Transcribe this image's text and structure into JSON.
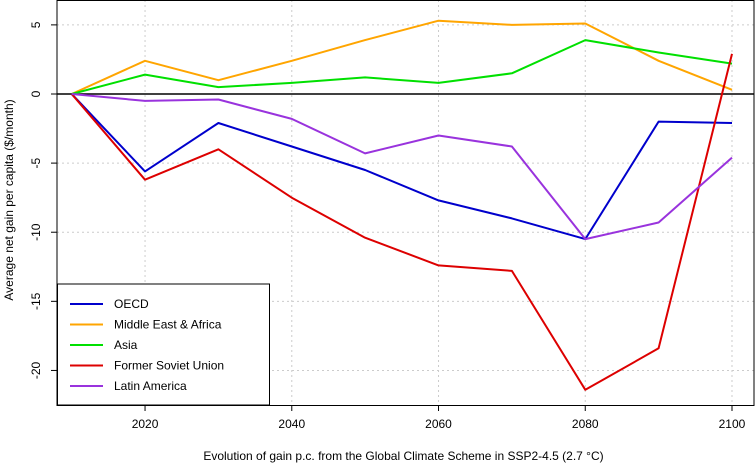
{
  "chart_data": {
    "type": "line",
    "title": "",
    "xlabel": "Evolution of  gain  p.c. from the Global Climate Scheme in SSP2-4.5 (2.7 °C)",
    "ylabel": "Average net gain per capita ($/month)",
    "xlim": [
      2008,
      2103
    ],
    "ylim": [
      -22.5,
      6.8
    ],
    "xticks": [
      2020,
      2040,
      2060,
      2080,
      2100
    ],
    "yticks": [
      5,
      0,
      -5,
      -10,
      -15,
      -20
    ],
    "grid": true,
    "zero_line": true,
    "legend_position": "bottom-left",
    "x": [
      2010,
      2020,
      2030,
      2040,
      2050,
      2060,
      2070,
      2080,
      2090,
      2100
    ],
    "series": [
      {
        "name": "OECD",
        "color": "#0000cc",
        "values": [
          0,
          -5.6,
          -2.1,
          -3.8,
          -5.5,
          -7.7,
          -9.0,
          -10.5,
          -2.0,
          -2.1
        ]
      },
      {
        "name": "Middle East & Africa",
        "color": "#ffa500",
        "values": [
          0,
          2.4,
          1.0,
          2.4,
          3.9,
          5.3,
          5.0,
          5.1,
          2.4,
          0.3
        ]
      },
      {
        "name": "Asia",
        "color": "#00e000",
        "values": [
          0,
          1.4,
          0.5,
          0.8,
          1.2,
          0.8,
          1.5,
          3.9,
          3.0,
          2.2
        ]
      },
      {
        "name": "Former Soviet Union",
        "color": "#dd0000",
        "values": [
          0,
          -6.2,
          -4.0,
          -7.5,
          -10.4,
          -12.4,
          -12.8,
          -21.4,
          -18.4,
          2.9
        ]
      },
      {
        "name": "Latin America",
        "color": "#9933dd",
        "values": [
          0,
          -0.5,
          -0.4,
          -1.8,
          -4.3,
          -3.0,
          -3.8,
          -10.5,
          -9.3,
          -4.6
        ]
      }
    ]
  }
}
